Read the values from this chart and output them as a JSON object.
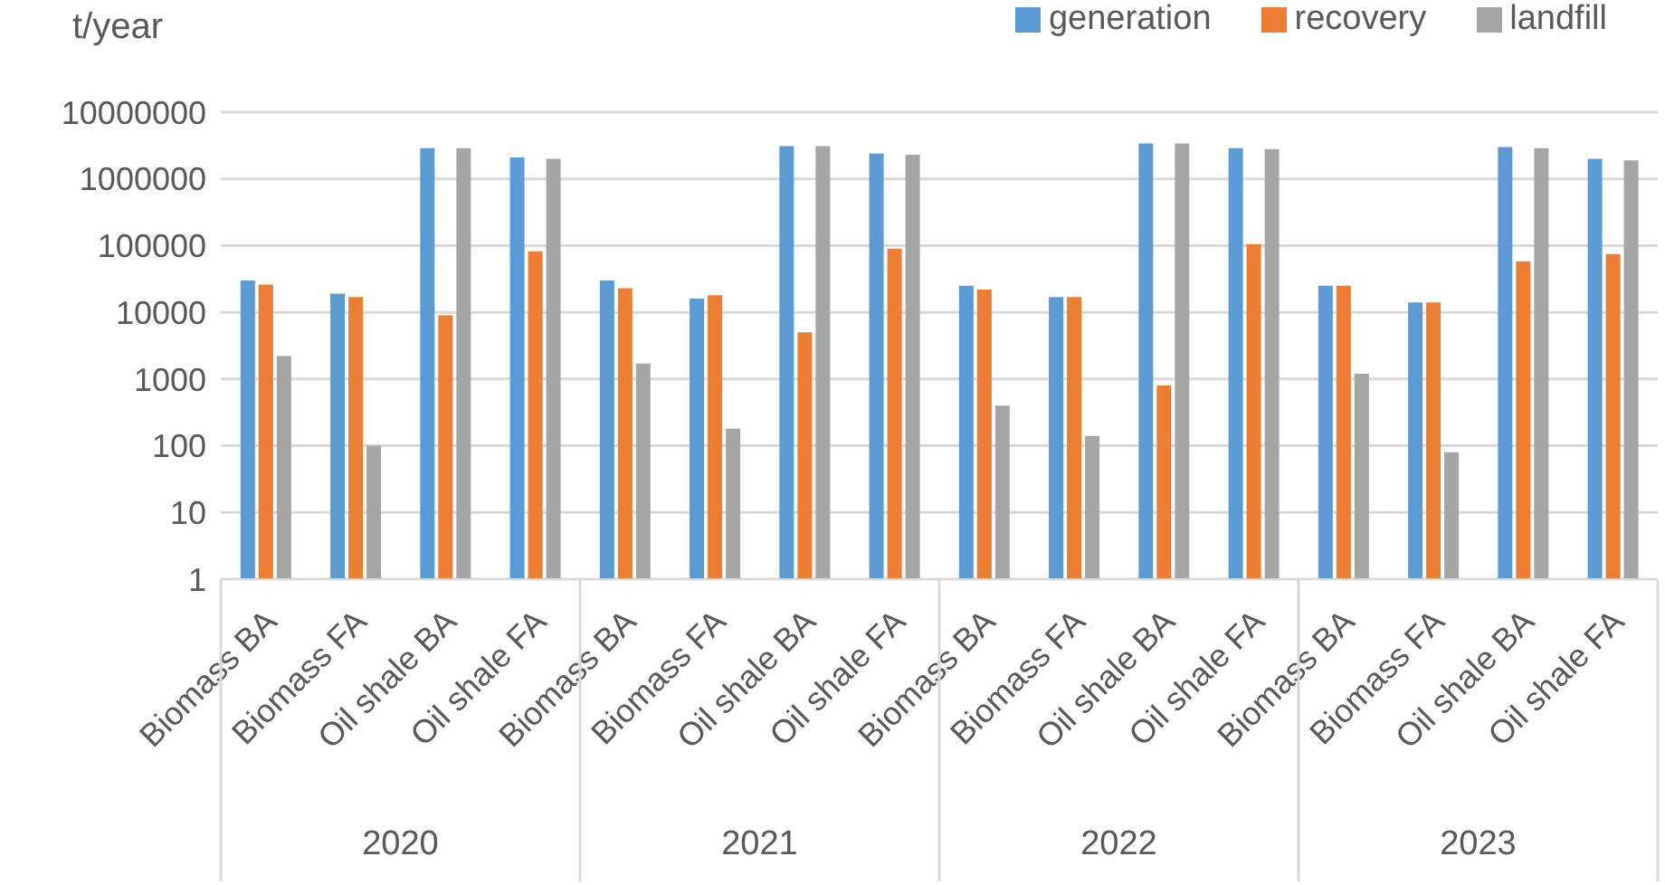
{
  "chart_data": {
    "type": "bar",
    "ylabel": "t/year",
    "categories": [
      "Biomass BA",
      "Biomass FA",
      "Oil shale BA",
      "Oil shale FA",
      "Biomass BA",
      "Biomass FA",
      "Oil shale BA",
      "Oil shale FA",
      "Biomass BA",
      "Biomass FA",
      "Oil shale BA",
      "Oil shale FA",
      "Biomass BA",
      "Biomass FA",
      "Oil shale BA",
      "Oil shale FA"
    ],
    "annotations": [
      "2020",
      "2021",
      "2022",
      "2023"
    ],
    "series": [
      {
        "name": "generation",
        "color": "#5b9bd5",
        "values": [
          30000,
          19000,
          2900000,
          2100000,
          30000,
          16000,
          3100000,
          2400000,
          25000,
          17000,
          3400000,
          2900000,
          25000,
          14000,
          3000000,
          2000000
        ]
      },
      {
        "name": "recovery",
        "color": "#ed7d31",
        "values": [
          26000,
          17000,
          9000,
          82000,
          23000,
          18000,
          5000,
          90000,
          22000,
          17000,
          800,
          105000,
          25000,
          14000,
          58000,
          75000
        ]
      },
      {
        "name": "landfill",
        "color": "#a5a5a5",
        "values": [
          2200,
          100,
          2900000,
          2000000,
          1700,
          180,
          3100000,
          2300000,
          400,
          140,
          3400000,
          2800000,
          1200,
          80,
          2900000,
          1900000
        ]
      }
    ],
    "log": true,
    "ylim": [
      1,
      10000000
    ],
    "yticks": [
      1,
      10,
      100,
      1000,
      10000,
      100000,
      1000000,
      10000000
    ],
    "grid": "y",
    "legend": "top right"
  }
}
